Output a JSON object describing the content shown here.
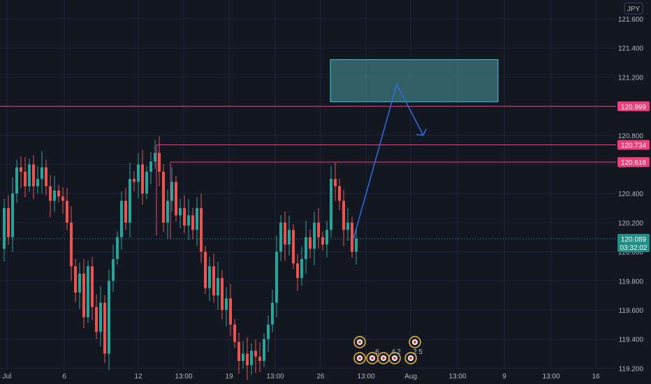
{
  "chart_data": {
    "type": "candlestick",
    "currency": "JPY",
    "ylim": [
      119.2,
      121.7
    ],
    "y_ticks": [
      "121.600",
      "121.400",
      "121.200",
      "121.000",
      "120.800",
      "120.600",
      "120.400",
      "120.200",
      "120.000",
      "119.800",
      "119.600",
      "119.400",
      "119.200"
    ],
    "x_ticks": [
      "Jul",
      "6",
      "12",
      "13:00",
      "19",
      "13:00",
      "26",
      "13:00",
      "Aug",
      "13:00",
      "9",
      "13:00",
      "16"
    ],
    "levels": [
      {
        "value": 120.999,
        "label": "120.999"
      },
      {
        "value": 120.734,
        "label": "120.734"
      },
      {
        "value": 120.616,
        "label": "120.616"
      }
    ],
    "last_price": {
      "value": 120.089,
      "label": "120.089",
      "countdown": "03:32:02"
    },
    "target_zone": {
      "low": 121.03,
      "high": 121.32
    },
    "projection_path": [
      120.089,
      121.15,
      120.8
    ],
    "colors": {
      "up": "#26a69a",
      "down": "#ef5350",
      "level": "#f23e7a",
      "projection": "#2d6ee6",
      "zone_fill": "#4c9b9b",
      "zone_border": "#3fc8d9",
      "price_tag": "#1f8f88"
    },
    "event_badges": [
      "6",
      "4",
      "2",
      "2",
      "5"
    ]
  }
}
